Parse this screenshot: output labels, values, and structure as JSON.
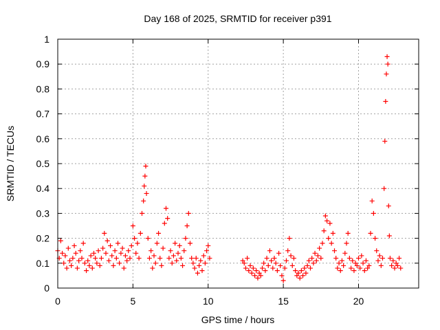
{
  "chart_data": {
    "type": "scatter",
    "title": "Day 168 of 2025, SRMTID for receiver p391",
    "xlabel": "GPS time / hours",
    "ylabel": "SRMTID / TECUs",
    "xlim": [
      0,
      24
    ],
    "ylim": [
      0,
      1
    ],
    "xticks": [
      0,
      5,
      10,
      15,
      20
    ],
    "yticks": [
      0,
      0.1,
      0.2,
      0.3,
      0.4,
      0.5,
      0.6,
      0.7,
      0.8,
      0.9,
      1
    ],
    "ytick_labels": [
      "0",
      "0.1",
      "0.2",
      "0.3",
      "0.4",
      "0.5",
      "0.6",
      "0.7",
      "0.8",
      "0.9",
      "1"
    ],
    "grid": true,
    "marker": "+",
    "colors": {
      "series": "#ff0000",
      "grid": "#a0a0a0",
      "axis": "#000000"
    },
    "series": [
      {
        "name": "SRMTID",
        "points": [
          [
            0.0,
            0.15
          ],
          [
            0.1,
            0.12
          ],
          [
            0.2,
            0.19
          ],
          [
            0.3,
            0.14
          ],
          [
            0.4,
            0.1
          ],
          [
            0.5,
            0.13
          ],
          [
            0.6,
            0.08
          ],
          [
            0.7,
            0.16
          ],
          [
            0.8,
            0.11
          ],
          [
            0.9,
            0.09
          ],
          [
            1.0,
            0.12
          ],
          [
            1.1,
            0.17
          ],
          [
            1.2,
            0.14
          ],
          [
            1.3,
            0.08
          ],
          [
            1.4,
            0.11
          ],
          [
            1.5,
            0.15
          ],
          [
            1.6,
            0.12
          ],
          [
            1.7,
            0.18
          ],
          [
            1.8,
            0.1
          ],
          [
            1.9,
            0.07
          ],
          [
            2.0,
            0.11
          ],
          [
            2.1,
            0.09
          ],
          [
            2.2,
            0.13
          ],
          [
            2.3,
            0.08
          ],
          [
            2.4,
            0.14
          ],
          [
            2.5,
            0.12
          ],
          [
            2.6,
            0.1
          ],
          [
            2.7,
            0.15
          ],
          [
            2.8,
            0.09
          ],
          [
            2.9,
            0.12
          ],
          [
            3.0,
            0.16
          ],
          [
            3.1,
            0.22
          ],
          [
            3.2,
            0.14
          ],
          [
            3.3,
            0.19
          ],
          [
            3.4,
            0.11
          ],
          [
            3.5,
            0.17
          ],
          [
            3.6,
            0.13
          ],
          [
            3.7,
            0.09
          ],
          [
            3.8,
            0.15
          ],
          [
            3.9,
            0.12
          ],
          [
            4.0,
            0.18
          ],
          [
            4.1,
            0.1
          ],
          [
            4.2,
            0.14
          ],
          [
            4.3,
            0.16
          ],
          [
            4.4,
            0.08
          ],
          [
            4.5,
            0.13
          ],
          [
            4.6,
            0.11
          ],
          [
            4.7,
            0.15
          ],
          [
            4.8,
            0.12
          ],
          [
            4.9,
            0.17
          ],
          [
            5.0,
            0.25
          ],
          [
            5.1,
            0.2
          ],
          [
            5.2,
            0.14
          ],
          [
            5.3,
            0.18
          ],
          [
            5.4,
            0.12
          ],
          [
            5.5,
            0.22
          ],
          [
            5.6,
            0.3
          ],
          [
            5.7,
            0.35
          ],
          [
            5.75,
            0.41
          ],
          [
            5.8,
            0.45
          ],
          [
            5.85,
            0.49
          ],
          [
            5.9,
            0.38
          ],
          [
            6.0,
            0.2
          ],
          [
            6.1,
            0.12
          ],
          [
            6.2,
            0.15
          ],
          [
            6.3,
            0.08
          ],
          [
            6.4,
            0.13
          ],
          [
            6.5,
            0.1
          ],
          [
            6.6,
            0.18
          ],
          [
            6.7,
            0.22
          ],
          [
            6.8,
            0.12
          ],
          [
            6.9,
            0.09
          ],
          [
            7.0,
            0.16
          ],
          [
            7.1,
            0.26
          ],
          [
            7.2,
            0.32
          ],
          [
            7.3,
            0.28
          ],
          [
            7.4,
            0.12
          ],
          [
            7.5,
            0.15
          ],
          [
            7.6,
            0.1
          ],
          [
            7.7,
            0.13
          ],
          [
            7.8,
            0.18
          ],
          [
            7.9,
            0.11
          ],
          [
            8.0,
            0.14
          ],
          [
            8.1,
            0.17
          ],
          [
            8.2,
            0.12
          ],
          [
            8.3,
            0.09
          ],
          [
            8.4,
            0.15
          ],
          [
            8.5,
            0.2
          ],
          [
            8.6,
            0.25
          ],
          [
            8.7,
            0.3
          ],
          [
            8.8,
            0.18
          ],
          [
            8.9,
            0.12
          ],
          [
            9.0,
            0.1
          ],
          [
            9.1,
            0.08
          ],
          [
            9.2,
            0.12
          ],
          [
            9.3,
            0.06
          ],
          [
            9.4,
            0.09
          ],
          [
            9.5,
            0.11
          ],
          [
            9.6,
            0.07
          ],
          [
            9.7,
            0.13
          ],
          [
            9.8,
            0.1
          ],
          [
            9.9,
            0.15
          ],
          [
            10.0,
            0.17
          ],
          [
            10.1,
            0.12
          ],
          [
            12.3,
            0.11
          ],
          [
            12.4,
            0.1
          ],
          [
            12.5,
            0.08
          ],
          [
            12.6,
            0.12
          ],
          [
            12.7,
            0.07
          ],
          [
            12.8,
            0.09
          ],
          [
            12.9,
            0.06
          ],
          [
            13.0,
            0.08
          ],
          [
            13.1,
            0.05
          ],
          [
            13.2,
            0.07
          ],
          [
            13.3,
            0.04
          ],
          [
            13.4,
            0.06
          ],
          [
            13.5,
            0.05
          ],
          [
            13.6,
            0.08
          ],
          [
            13.7,
            0.1
          ],
          [
            13.8,
            0.07
          ],
          [
            13.9,
            0.12
          ],
          [
            14.0,
            0.09
          ],
          [
            14.1,
            0.15
          ],
          [
            14.2,
            0.11
          ],
          [
            14.3,
            0.08
          ],
          [
            14.4,
            0.12
          ],
          [
            14.5,
            0.1
          ],
          [
            14.6,
            0.07
          ],
          [
            14.7,
            0.14
          ],
          [
            14.8,
            0.09
          ],
          [
            14.9,
            0.05
          ],
          [
            15.0,
            0.03
          ],
          [
            15.1,
            0.08
          ],
          [
            15.2,
            0.11
          ],
          [
            15.3,
            0.15
          ],
          [
            15.4,
            0.2
          ],
          [
            15.5,
            0.13
          ],
          [
            15.6,
            0.09
          ],
          [
            15.7,
            0.12
          ],
          [
            15.8,
            0.07
          ],
          [
            15.9,
            0.05
          ],
          [
            16.0,
            0.06
          ],
          [
            16.1,
            0.04
          ],
          [
            16.2,
            0.07
          ],
          [
            16.3,
            0.05
          ],
          [
            16.4,
            0.08
          ],
          [
            16.5,
            0.06
          ],
          [
            16.6,
            0.09
          ],
          [
            16.7,
            0.11
          ],
          [
            16.8,
            0.08
          ],
          [
            16.9,
            0.12
          ],
          [
            17.0,
            0.1
          ],
          [
            17.1,
            0.14
          ],
          [
            17.2,
            0.11
          ],
          [
            17.3,
            0.13
          ],
          [
            17.4,
            0.16
          ],
          [
            17.5,
            0.12
          ],
          [
            17.6,
            0.18
          ],
          [
            17.7,
            0.23
          ],
          [
            17.8,
            0.29
          ],
          [
            17.9,
            0.27
          ],
          [
            18.0,
            0.2
          ],
          [
            18.1,
            0.26
          ],
          [
            18.2,
            0.18
          ],
          [
            18.3,
            0.22
          ],
          [
            18.4,
            0.15
          ],
          [
            18.5,
            0.12
          ],
          [
            18.6,
            0.08
          ],
          [
            18.7,
            0.1
          ],
          [
            18.8,
            0.07
          ],
          [
            18.9,
            0.11
          ],
          [
            19.0,
            0.09
          ],
          [
            19.1,
            0.14
          ],
          [
            19.2,
            0.18
          ],
          [
            19.3,
            0.22
          ],
          [
            19.4,
            0.12
          ],
          [
            19.5,
            0.08
          ],
          [
            19.6,
            0.11
          ],
          [
            19.7,
            0.07
          ],
          [
            19.8,
            0.1
          ],
          [
            19.9,
            0.09
          ],
          [
            20.0,
            0.12
          ],
          [
            20.1,
            0.08
          ],
          [
            20.2,
            0.13
          ],
          [
            20.3,
            0.1
          ],
          [
            20.4,
            0.07
          ],
          [
            20.5,
            0.11
          ],
          [
            20.6,
            0.08
          ],
          [
            20.7,
            0.09
          ],
          [
            20.8,
            0.22
          ],
          [
            20.9,
            0.35
          ],
          [
            21.0,
            0.3
          ],
          [
            21.1,
            0.2
          ],
          [
            21.2,
            0.15
          ],
          [
            21.3,
            0.11
          ],
          [
            21.4,
            0.13
          ],
          [
            21.5,
            0.09
          ],
          [
            21.6,
            0.12
          ],
          [
            21.7,
            0.4
          ],
          [
            21.75,
            0.59
          ],
          [
            21.8,
            0.75
          ],
          [
            21.85,
            0.86
          ],
          [
            21.9,
            0.93
          ],
          [
            21.95,
            0.9
          ],
          [
            22.0,
            0.33
          ],
          [
            22.05,
            0.21
          ],
          [
            22.1,
            0.12
          ],
          [
            22.2,
            0.09
          ],
          [
            22.3,
            0.11
          ],
          [
            22.4,
            0.08
          ],
          [
            22.5,
            0.1
          ],
          [
            22.6,
            0.09
          ],
          [
            22.7,
            0.12
          ],
          [
            22.8,
            0.08
          ]
        ]
      }
    ]
  }
}
